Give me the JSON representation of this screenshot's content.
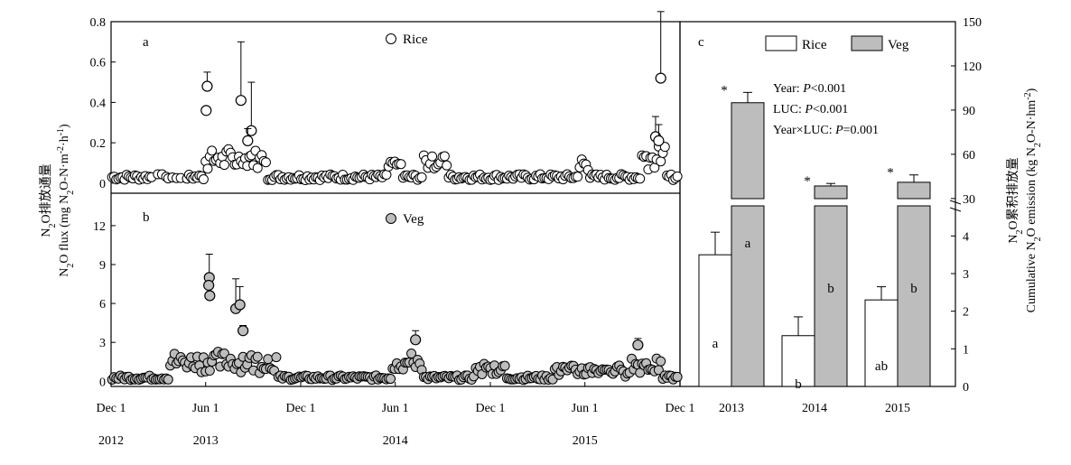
{
  "chart_data": [
    {
      "type": "scatter",
      "panel_letter": "a",
      "legend": "Rice",
      "y_ticks": [
        "0.8",
        "0.6",
        "0.4",
        "0.2",
        "0"
      ],
      "ylim": [
        -0.05,
        0.8
      ],
      "x_ticks": [
        {
          "day": 0,
          "label": "Dec 1"
        },
        {
          "day": 182,
          "label": "Jun 1"
        },
        {
          "day": 365,
          "label": "Dec 1"
        },
        {
          "day": 547,
          "label": "Jun 1"
        },
        {
          "day": 730,
          "label": "Dec 1"
        },
        {
          "day": 912,
          "label": "Jun 1"
        },
        {
          "day": 1095,
          "label": "Dec 1"
        }
      ],
      "year_labels": [
        {
          "day": 0,
          "label": "2012"
        },
        {
          "day": 182,
          "label": "2013"
        },
        {
          "day": 547,
          "label": "2014"
        },
        {
          "day": 912,
          "label": "2015"
        }
      ],
      "peaks": [
        {
          "day": 185,
          "value": 0.48,
          "err": 0.07
        },
        {
          "day": 183,
          "value": 0.36,
          "err": 0.0
        },
        {
          "day": 250,
          "value": 0.41,
          "err": 0.29
        },
        {
          "day": 270,
          "value": 0.26,
          "err": 0.24
        },
        {
          "day": 263,
          "value": 0.21,
          "err": 0.06
        },
        {
          "day": 1058,
          "value": 0.52,
          "err": 0.33
        },
        {
          "day": 1048,
          "value": 0.23,
          "err": 0.1
        },
        {
          "day": 1054,
          "value": 0.21,
          "err": 0.08
        }
      ]
    },
    {
      "type": "scatter",
      "panel_letter": "b",
      "legend": "Veg",
      "y_ticks": [
        "12",
        "9",
        "6",
        "3",
        "0"
      ],
      "ylim": [
        -0.4,
        14.5
      ],
      "peaks": [
        {
          "day": 189,
          "value": 8.0,
          "err": 1.8
        },
        {
          "day": 188,
          "value": 7.4,
          "err": 0.0
        },
        {
          "day": 190,
          "value": 6.6,
          "err": 0.0
        },
        {
          "day": 240,
          "value": 5.6,
          "err": 2.3
        },
        {
          "day": 248,
          "value": 5.9,
          "err": 1.4
        },
        {
          "day": 254,
          "value": 3.9,
          "err": 0.4
        },
        {
          "day": 586,
          "value": 3.2,
          "err": 0.7
        },
        {
          "day": 1014,
          "value": 2.8,
          "err": 0.5
        }
      ]
    },
    {
      "type": "bar",
      "panel_letter": "c",
      "categories": [
        "2013",
        "2014",
        "2015"
      ],
      "series": [
        {
          "name": "Rice",
          "values": [
            3.5,
            1.35,
            2.3
          ],
          "errors": [
            0.6,
            0.5,
            0.35
          ],
          "letters": [
            "a",
            "b",
            "ab"
          ]
        },
        {
          "name": "Veg",
          "values": [
            95,
            38.5,
            41
          ],
          "errors": [
            7,
            1.7,
            5
          ],
          "letters": [
            "a",
            "b",
            "b"
          ]
        }
      ],
      "significance_mark": "*",
      "stats": [
        {
          "label": "Year:",
          "p": "P",
          "rest": "<0.001"
        },
        {
          "label": "LUC:",
          "p": "P",
          "rest": "<0.001"
        },
        {
          "label": "Year×LUC:",
          "p": "P",
          "rest": "=0.001"
        }
      ],
      "y_right_upper_ticks": [
        "150",
        "120",
        "90",
        "60",
        "30"
      ],
      "y_right_lower_ticks": [
        "4",
        "3",
        "2",
        "1",
        "0"
      ],
      "y_right_upper_range": [
        25,
        150
      ],
      "y_right_lower_range": [
        0,
        4.8
      ]
    }
  ],
  "axis_labels": {
    "left_cn": "N2O排放通量",
    "left_en": "N2O flux (mg N2O-N·m-2·h-1)",
    "right_cn": "N2O累积排放量",
    "right_en": "Cumulative N2O emission (kg N2O-N·hm-2)"
  }
}
